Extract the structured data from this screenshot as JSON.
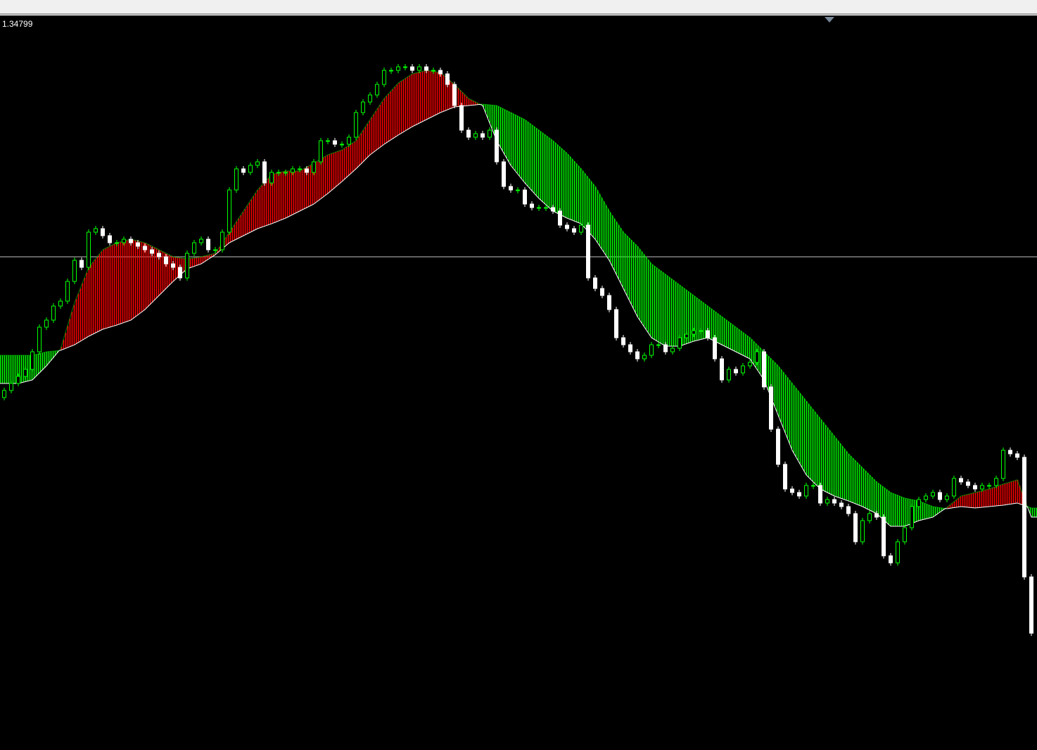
{
  "chart_data": {
    "type": "candlestick",
    "title": "",
    "price_label": "1.34799",
    "horizontal_line_price": 1.34458,
    "grid": false,
    "colors": {
      "background": "#000000",
      "bull_outline": "#00ff00",
      "bull_body": "#000000",
      "bear_body": "#ffffff",
      "band_up": "#ff0000",
      "band_down": "#00ff00",
      "ma_line": "#ffffff",
      "hline": "#c0c0c0",
      "shift_marker": "#778899"
    },
    "first_open": 1.34258,
    "close": [
      1.34268,
      1.34278,
      1.34288,
      1.34298,
      1.34323,
      1.34358,
      1.34368,
      1.34388,
      1.34395,
      1.34423,
      1.34453,
      1.34443,
      1.34493,
      1.34498,
      1.34488,
      1.34478,
      1.34478,
      1.34483,
      1.34478,
      1.34473,
      1.34468,
      1.34463,
      1.34458,
      1.34448,
      1.34443,
      1.34428,
      1.34463,
      1.34478,
      1.34483,
      1.34468,
      1.34468,
      1.34493,
      1.34553,
      1.34583,
      1.34578,
      1.34588,
      1.34593,
      1.34563,
      1.34578,
      1.34578,
      1.34578,
      1.34583,
      1.34583,
      1.34578,
      1.34593,
      1.34623,
      1.34623,
      1.34618,
      1.34618,
      1.34628,
      1.34663,
      1.34678,
      1.34688,
      1.34703,
      1.34723,
      1.34723,
      1.34728,
      1.34728,
      1.34723,
      1.34728,
      1.34723,
      1.34723,
      1.34718,
      1.34703,
      1.34673,
      1.34638,
      1.34628,
      1.34633,
      1.34628,
      1.34638,
      1.34593,
      1.34558,
      1.34553,
      1.34553,
      1.34533,
      1.34528,
      1.34528,
      1.34528,
      1.34523,
      1.34503,
      1.34498,
      1.34493,
      1.34503,
      1.34428,
      1.34413,
      1.34403,
      1.34383,
      1.34343,
      1.34333,
      1.34323,
      1.34313,
      1.34318,
      1.34333,
      1.34333,
      1.34323,
      1.34328,
      1.34343,
      1.34348,
      1.34353,
      1.34353,
      1.34343,
      1.34313,
      1.34283,
      1.34298,
      1.34293,
      1.34303,
      1.34308,
      1.34323,
      1.34273,
      1.34213,
      1.34163,
      1.34128,
      1.34123,
      1.34118,
      1.34133,
      1.34133,
      1.34108,
      1.34113,
      1.34108,
      1.34103,
      1.34093,
      1.34053,
      1.34083,
      1.34093,
      1.34088,
      1.34033,
      1.34023,
      1.34053,
      1.34073,
      1.34103,
      1.34113,
      1.34118,
      1.34123,
      1.34113,
      1.34118,
      1.34143,
      1.34138,
      1.34133,
      1.34128,
      1.34133,
      1.34133,
      1.34143,
      1.34183,
      1.34178,
      1.34173,
      1.34003,
      1.33923
    ],
    "indicator": {
      "bars_step": 2,
      "fast": [
        1.34278,
        1.34278,
        1.34283,
        1.34303,
        1.34327,
        1.34393,
        1.34443,
        1.34468,
        1.34478,
        1.34483,
        1.34478,
        1.34468,
        1.34458,
        1.34455,
        1.34458,
        1.34463,
        1.34493,
        1.34523,
        1.34553,
        1.34575,
        1.3458,
        1.3458,
        1.34591,
        1.34603,
        1.3461,
        1.34623,
        1.34653,
        1.34683,
        1.34705,
        1.34718,
        1.34723,
        1.3472,
        1.34703,
        1.34683,
        1.34673,
        1.34623,
        1.34588,
        1.34563,
        1.34541,
        1.34523,
        1.34513,
        1.34505,
        1.34483,
        1.34453,
        1.34413,
        1.34373,
        1.34343,
        1.34331,
        1.34331,
        1.34338,
        1.34343,
        1.34333,
        1.34323,
        1.34313,
        1.34283,
        1.34233,
        1.34183,
        1.34148,
        1.34128,
        1.34118,
        1.34111,
        1.34103,
        1.34093,
        1.34075,
        1.34075,
        1.34083,
        1.34088,
        1.34102,
        1.34118,
        1.34123,
        1.34128,
        1.34135,
        1.34141,
        1.34088
      ],
      "slow": [
        1.34318,
        1.34318,
        1.34318,
        1.34323,
        1.34325,
        1.34333,
        1.34345,
        1.34355,
        1.34361,
        1.34368,
        1.34383,
        1.34403,
        1.34423,
        1.34441,
        1.34448,
        1.34461,
        1.34478,
        1.34488,
        1.34498,
        1.34505,
        1.34513,
        1.34523,
        1.34533,
        1.34548,
        1.34565,
        1.34583,
        1.34603,
        1.34618,
        1.34631,
        1.34643,
        1.34653,
        1.34663,
        1.34671,
        1.34673,
        1.34675,
        1.34673,
        1.34663,
        1.34653,
        1.34638,
        1.34623,
        1.34605,
        1.34583,
        1.34558,
        1.34523,
        1.34493,
        1.34473,
        1.34448,
        1.34433,
        1.34418,
        1.34403,
        1.34388,
        1.34373,
        1.34358,
        1.34343,
        1.34323,
        1.34303,
        1.34278,
        1.34253,
        1.34228,
        1.34203,
        1.34178,
        1.34158,
        1.34138,
        1.34123,
        1.34115,
        1.34111,
        1.34103,
        1.341,
        1.34103,
        1.34101,
        1.34103,
        1.34105,
        1.34108,
        1.34101
      ]
    }
  }
}
